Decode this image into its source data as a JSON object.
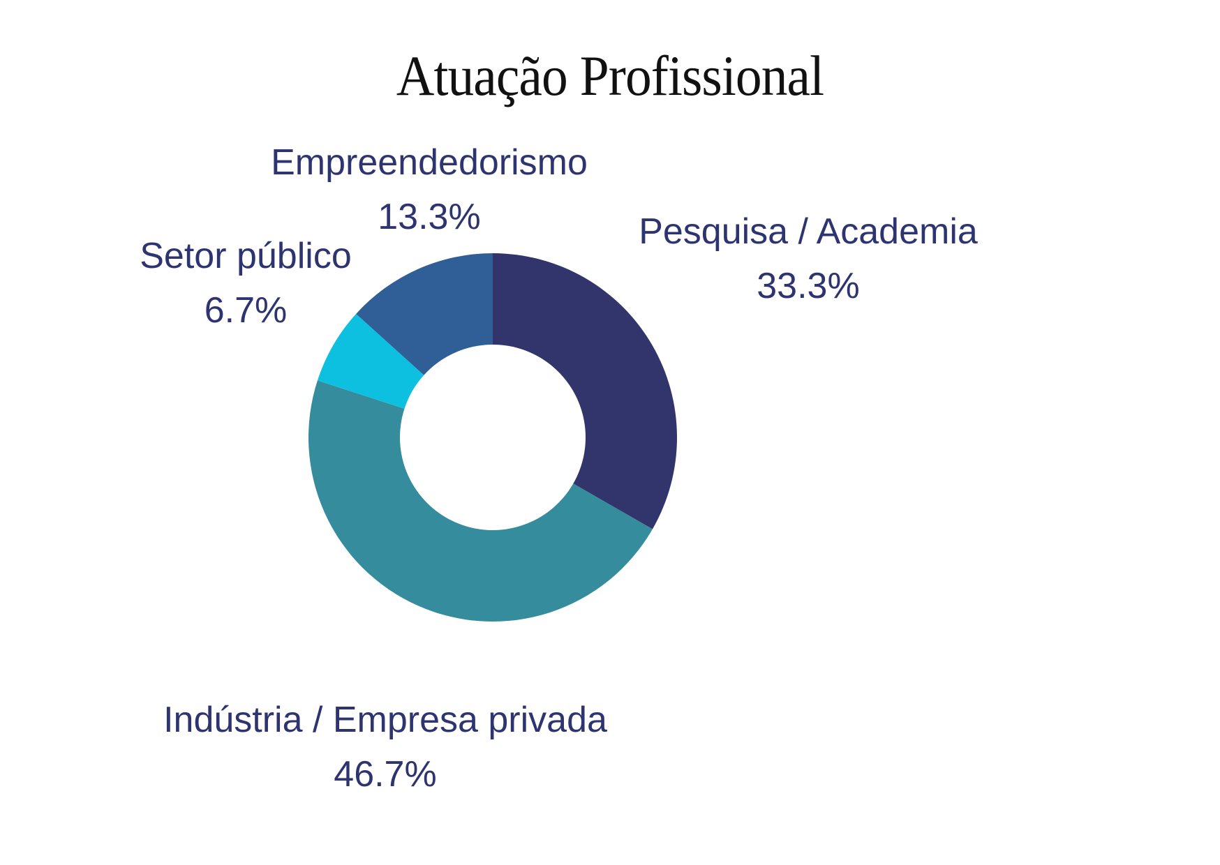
{
  "chart_data": {
    "type": "pie",
    "variant": "donut",
    "title": "Atuação Profissional",
    "categories": [
      "Pesquisa / Academia",
      "Indústria / Empresa privada",
      "Setor público",
      "Empreendedorismo"
    ],
    "values": [
      33.3,
      46.7,
      6.7,
      13.3
    ],
    "value_labels": [
      "33.3%",
      "46.7%",
      "6.7%",
      "13.3%"
    ],
    "colors": [
      "#31356B",
      "#358C9C",
      "#0DC0E0",
      "#2F5F96"
    ],
    "start_angle_deg": 0,
    "direction": "clockwise",
    "legend": "none (direct labels)"
  },
  "labels": [
    {
      "name": "Pesquisa / Academia",
      "pct": "33.3%"
    },
    {
      "name": "Indústria / Empresa privada",
      "pct": "46.7%"
    },
    {
      "name": "Setor público",
      "pct": "6.7%"
    },
    {
      "name": "Empreendedorismo",
      "pct": "13.3%"
    }
  ],
  "colors": {
    "label_text": "#2E3470",
    "title_text": "#111111"
  }
}
